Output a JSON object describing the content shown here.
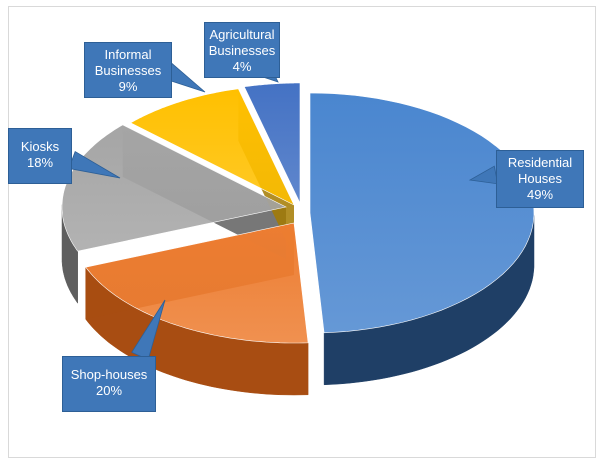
{
  "chart_data": {
    "type": "pie",
    "style": "3d-exploded",
    "slices": [
      {
        "label_lines": [
          "Residential",
          "Houses"
        ],
        "value": 49,
        "value_label": "49%",
        "color": "#4a86cf",
        "side_color": "#1f3f66"
      },
      {
        "label_lines": [
          "Shop-houses"
        ],
        "value": 20,
        "value_label": "20%",
        "color": "#ed7d31",
        "side_color": "#a84d12"
      },
      {
        "label_lines": [
          "Kiosks"
        ],
        "value": 18,
        "value_label": "18%",
        "color": "#a5a5a5",
        "side_color": "#5f5f5f"
      },
      {
        "label_lines": [
          "Informal",
          "Businesses"
        ],
        "value": 9,
        "value_label": "9%",
        "color": "#ffc000",
        "side_color": "#a37a00"
      },
      {
        "label_lines": [
          "Agricultural",
          "Businesses"
        ],
        "value": 4,
        "value_label": "4%",
        "color": "#4472c4",
        "side_color": "#22406f"
      }
    ],
    "legend": "none",
    "data_labels": "callouts"
  }
}
